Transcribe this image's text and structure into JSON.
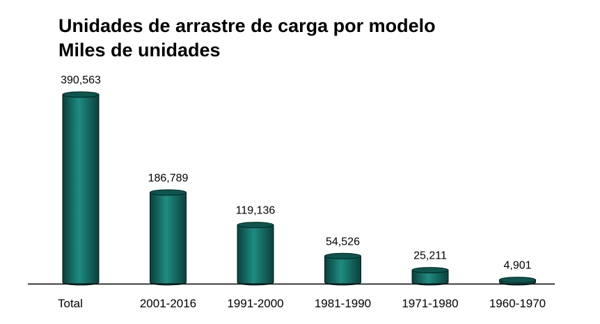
{
  "chart_data": {
    "type": "bar",
    "title": "Unidades de arrastre de carga por modelo",
    "subtitle": "Miles de unidades",
    "categories": [
      "Total",
      "2001-2016",
      "1991-2000",
      "1981-1990",
      "1971-1980",
      "1960-1970"
    ],
    "values": [
      390563,
      186789,
      119136,
      54526,
      25211,
      4901
    ],
    "value_labels": [
      "390,563",
      "186,789",
      "119,136",
      "54,526",
      "25,211",
      "4,901"
    ],
    "ylim": [
      0,
      390563
    ],
    "grid": false,
    "legend": "none",
    "bar_style": "cylinder",
    "colors": {
      "bar_dark": "#0b3f3b",
      "bar_mid": "#0f6a62",
      "bar_light": "#1e8c82",
      "bar_top": "#0d5650",
      "outline": "#04201d",
      "axis": "#000000"
    }
  }
}
